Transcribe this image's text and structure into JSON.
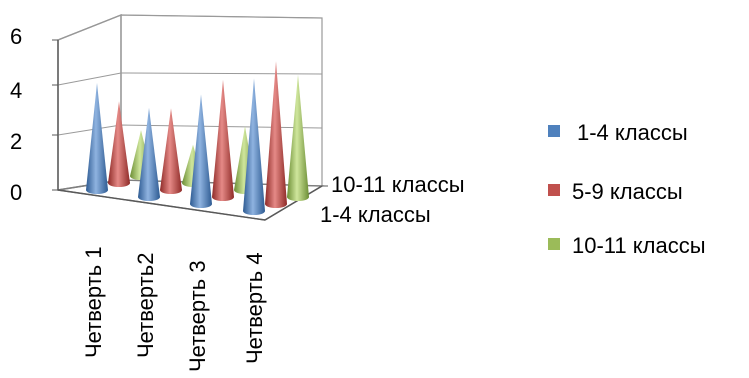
{
  "chart_data": {
    "type": "bar",
    "subtype": "3d-cone",
    "title": "",
    "xlabel": "",
    "ylabel": "",
    "ylim": [
      0,
      6
    ],
    "y_ticks": [
      "0",
      "2",
      "4",
      "6"
    ],
    "grid": true,
    "legend_position": "right",
    "categories": [
      "Четверть 1",
      "Четверть2",
      "Четверть 3",
      "Четверть 4"
    ],
    "depth_labels": [
      "10-11 классы",
      "1-4 классы"
    ],
    "series": [
      {
        "name": "1-4 классы",
        "color": "#4f81bd",
        "values": [
          4.2,
          3.5,
          4.3,
          5.2
        ]
      },
      {
        "name": "5-9 классы",
        "color": "#c0504d",
        "values": [
          3.2,
          3.2,
          4.6,
          5.6
        ]
      },
      {
        "name": "10-11 классы",
        "color": "#9bbb59",
        "values": [
          1.8,
          1.5,
          2.5,
          4.8
        ]
      }
    ]
  }
}
